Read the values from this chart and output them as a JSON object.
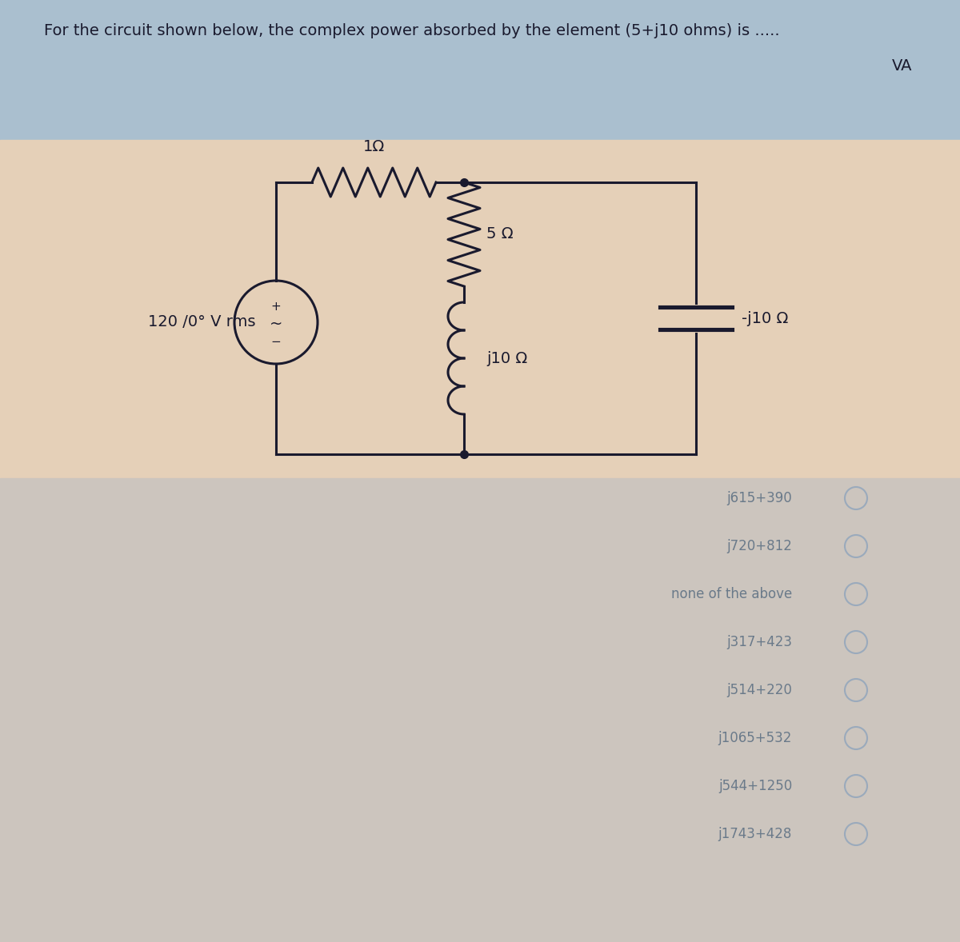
{
  "title_text": "For the circuit shown below, the complex power absorbed by the element (5+j10 ohms) is .....",
  "title_va_text": "VA",
  "bg_top_color": "#aabfcf",
  "bg_circuit_color": "#e5d0b8",
  "bg_bottom_color": "#ccc5be",
  "circuit_line_color": "#1a1a2e",
  "source_label": "120 /0° V rms",
  "r1_label": "1Ω",
  "r5_label": "5 Ω",
  "l_label": "j10 Ω",
  "c_label": "-j10 Ω",
  "answer_options": [
    "j615+390",
    "j720+812",
    "none of the above",
    "j317+423",
    "j514+220",
    "j1065+532",
    "j544+1250",
    "j1743+428"
  ],
  "answer_color": "#6a7a8a",
  "radio_color": "#9aaabc",
  "fig_width": 12.0,
  "fig_height": 11.78
}
